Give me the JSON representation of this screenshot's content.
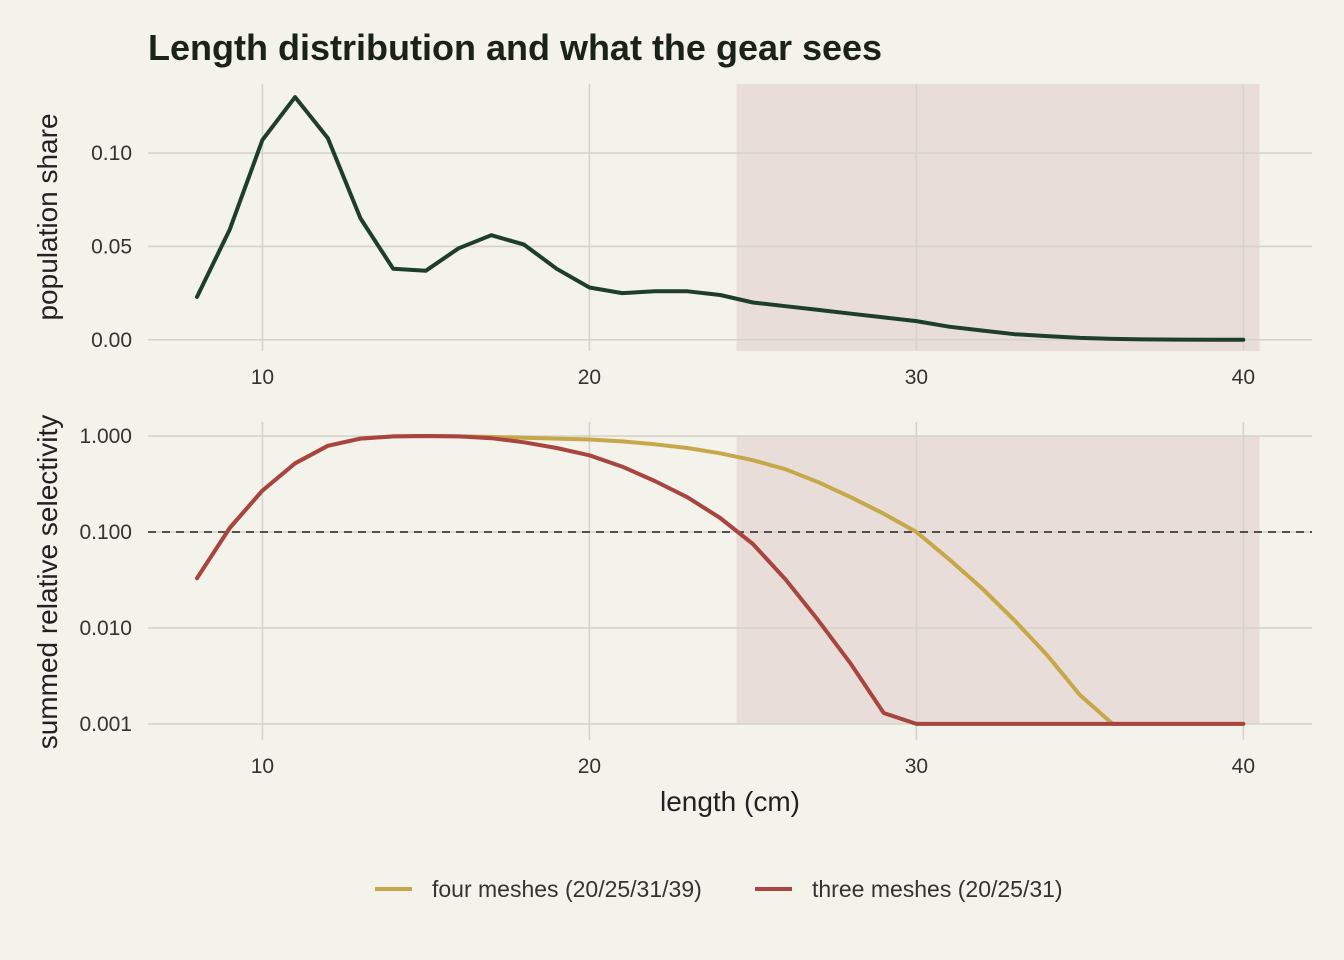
{
  "chart_data": {
    "title": "Length distribution and what the gear sees",
    "type": "line",
    "xlabel": "length (cm)",
    "xlim": [
      6.5,
      42.1
    ],
    "x_ticks": [
      10,
      20,
      30,
      40
    ],
    "x_tick_labels": [
      "10",
      "20",
      "30",
      "40"
    ],
    "highlight_band": {
      "x_from": 24.5,
      "x_to": 40.5,
      "color": "#e8ddd8"
    },
    "grid": true,
    "legend_position": "bottom",
    "panels": [
      {
        "ylabel": "population share",
        "y_scale": "linear",
        "ylim": [
          -0.006,
          0.137
        ],
        "y_ticks": [
          0,
          0.05,
          0.1
        ],
        "y_tick_labels": [
          "0.00",
          "0.05",
          "0.10"
        ],
        "series": [
          {
            "color": "#1f3d2b",
            "x": [
              8,
              9,
              10,
              11,
              12,
              13,
              14,
              15,
              16,
              17,
              18,
              19,
              20,
              21,
              22,
              23,
              24,
              25,
              26,
              27,
              28,
              29,
              30,
              31,
              32,
              33,
              34,
              35,
              36,
              37,
              38,
              39,
              40
            ],
            "values": [
              0.023,
              0.059,
              0.107,
              0.13,
              0.108,
              0.065,
              0.038,
              0.037,
              0.049,
              0.056,
              0.051,
              0.038,
              0.028,
              0.025,
              0.026,
              0.026,
              0.024,
              0.02,
              0.018,
              0.016,
              0.014,
              0.012,
              0.01,
              0.007,
              0.005,
              0.003,
              0.002,
              0.001,
              0.0005,
              0.0002,
              0.0001,
              5e-05,
              0.0
            ]
          }
        ]
      },
      {
        "ylabel": "summed relative selectivity",
        "y_scale": "log",
        "ylim": [
          0.00068,
          1.4
        ],
        "y_ticks": [
          0.001,
          0.01,
          0.1,
          1
        ],
        "y_tick_labels": [
          "0.001",
          "0.010",
          "0.100",
          "1.000"
        ],
        "reference_line": {
          "y": 0.1,
          "style": "dashed",
          "color": "#222222"
        },
        "series": [
          {
            "name": "four meshes (20/25/31/39)",
            "color": "#c6a84a",
            "x": [
              8,
              9,
              10,
              11,
              12,
              13,
              14,
              15,
              16,
              17,
              18,
              19,
              20,
              21,
              22,
              23,
              24,
              25,
              26,
              27,
              28,
              29,
              30,
              31,
              32,
              33,
              34,
              35,
              36,
              37,
              38,
              39,
              40
            ],
            "values": [
              0.033,
              0.11,
              0.27,
              0.52,
              0.79,
              0.94,
              0.99,
              1.0,
              0.99,
              0.98,
              0.96,
              0.94,
              0.92,
              0.88,
              0.82,
              0.75,
              0.66,
              0.56,
              0.45,
              0.33,
              0.23,
              0.155,
              0.1,
              0.052,
              0.026,
              0.012,
              0.0052,
              0.002,
              0.001,
              0.001,
              0.001,
              0.001,
              0.001
            ]
          },
          {
            "name": "three meshes (20/25/31)",
            "color": "#a84540",
            "x": [
              8,
              9,
              10,
              11,
              12,
              13,
              14,
              15,
              16,
              17,
              18,
              19,
              20,
              21,
              22,
              23,
              24,
              25,
              26,
              27,
              28,
              29,
              30,
              31,
              32,
              33,
              34,
              35,
              36,
              37,
              38,
              39,
              40
            ],
            "values": [
              0.033,
              0.11,
              0.27,
              0.52,
              0.79,
              0.94,
              0.99,
              1.0,
              0.99,
              0.95,
              0.86,
              0.75,
              0.63,
              0.48,
              0.34,
              0.23,
              0.14,
              0.075,
              0.032,
              0.012,
              0.0042,
              0.0013,
              0.001,
              0.001,
              0.001,
              0.001,
              0.001,
              0.001,
              0.001,
              0.001,
              0.001,
              0.001,
              0.001
            ]
          }
        ]
      }
    ]
  }
}
